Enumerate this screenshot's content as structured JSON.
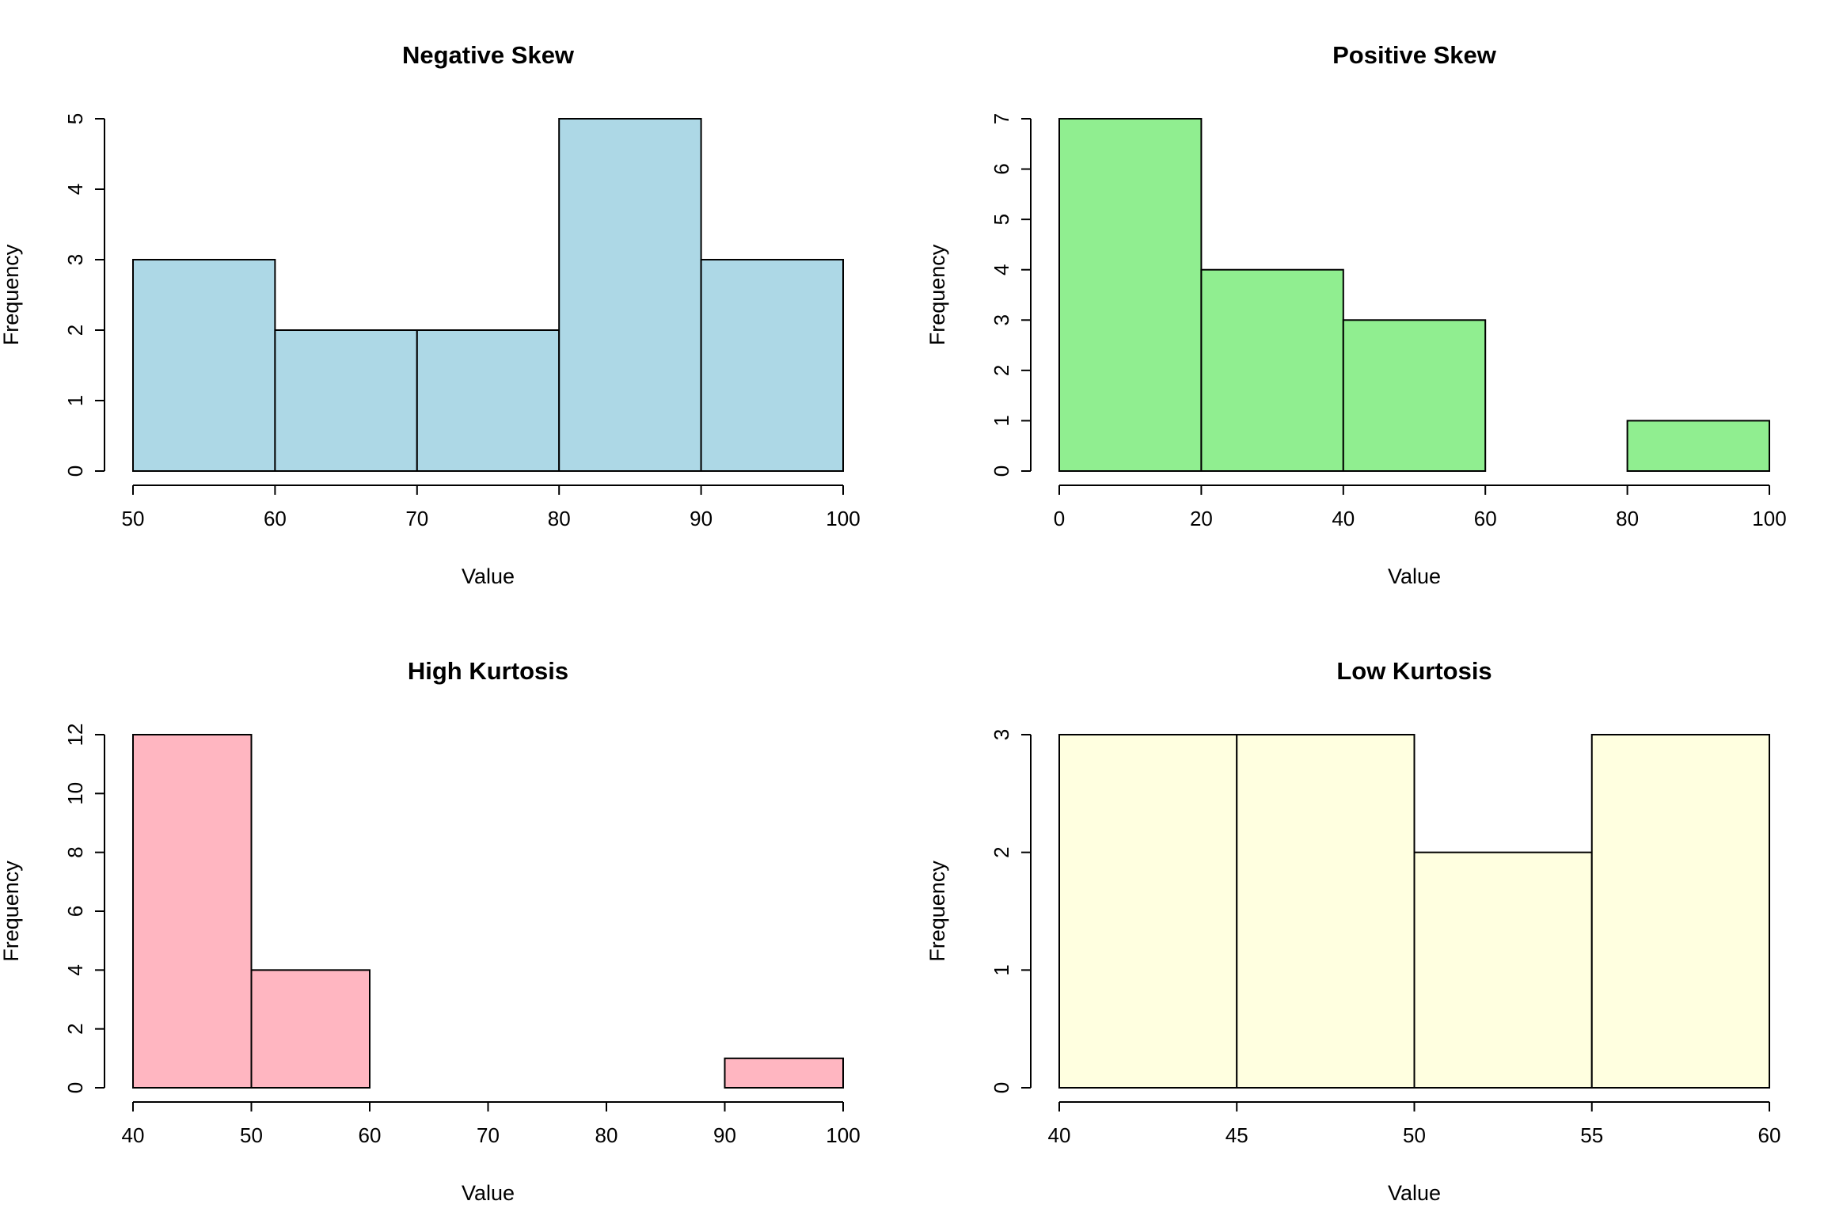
{
  "chart_data": [
    {
      "type": "bar",
      "title": "Negative Skew",
      "xlabel": "Value",
      "ylabel": "Frequency",
      "fill_color": "#ADD8E6",
      "bins": [
        [
          50,
          60
        ],
        [
          60,
          70
        ],
        [
          70,
          80
        ],
        [
          80,
          90
        ],
        [
          90,
          100
        ]
      ],
      "values": [
        3,
        2,
        2,
        5,
        3
      ],
      "xlim": [
        50,
        100
      ],
      "xticks": [
        50,
        60,
        70,
        80,
        90,
        100
      ],
      "ylim": [
        0,
        5
      ],
      "yticks": [
        0,
        1,
        2,
        3,
        4,
        5
      ],
      "grid": false
    },
    {
      "type": "bar",
      "title": "Positive Skew",
      "xlabel": "Value",
      "ylabel": "Frequency",
      "fill_color": "#90EE90",
      "bins": [
        [
          0,
          20
        ],
        [
          20,
          40
        ],
        [
          40,
          60
        ],
        [
          60,
          80
        ],
        [
          80,
          100
        ]
      ],
      "values": [
        7,
        4,
        3,
        0,
        1
      ],
      "xlim": [
        0,
        100
      ],
      "xticks": [
        0,
        20,
        40,
        60,
        80,
        100
      ],
      "ylim": [
        0,
        7
      ],
      "yticks": [
        0,
        1,
        2,
        3,
        4,
        5,
        6,
        7
      ],
      "grid": false
    },
    {
      "type": "bar",
      "title": "High Kurtosis",
      "xlabel": "Value",
      "ylabel": "Frequency",
      "fill_color": "#FFB6C1",
      "bins": [
        [
          40,
          50
        ],
        [
          50,
          60
        ],
        [
          60,
          70
        ],
        [
          70,
          80
        ],
        [
          80,
          90
        ],
        [
          90,
          100
        ]
      ],
      "values": [
        12,
        4,
        0,
        0,
        0,
        1
      ],
      "xlim": [
        40,
        100
      ],
      "xticks": [
        40,
        50,
        60,
        70,
        80,
        90,
        100
      ],
      "ylim": [
        0,
        12
      ],
      "yticks": [
        0,
        2,
        4,
        6,
        8,
        10,
        12
      ],
      "grid": false
    },
    {
      "type": "bar",
      "title": "Low Kurtosis",
      "xlabel": "Value",
      "ylabel": "Frequency",
      "fill_color": "#FFFFE0",
      "bins": [
        [
          40,
          45
        ],
        [
          45,
          50
        ],
        [
          50,
          55
        ],
        [
          55,
          60
        ]
      ],
      "values": [
        3,
        3,
        2,
        3
      ],
      "xlim": [
        40,
        60
      ],
      "xticks": [
        40,
        45,
        50,
        55,
        60
      ],
      "ylim": [
        0,
        3
      ],
      "yticks": [
        0,
        1,
        2,
        3
      ],
      "grid": false
    }
  ]
}
